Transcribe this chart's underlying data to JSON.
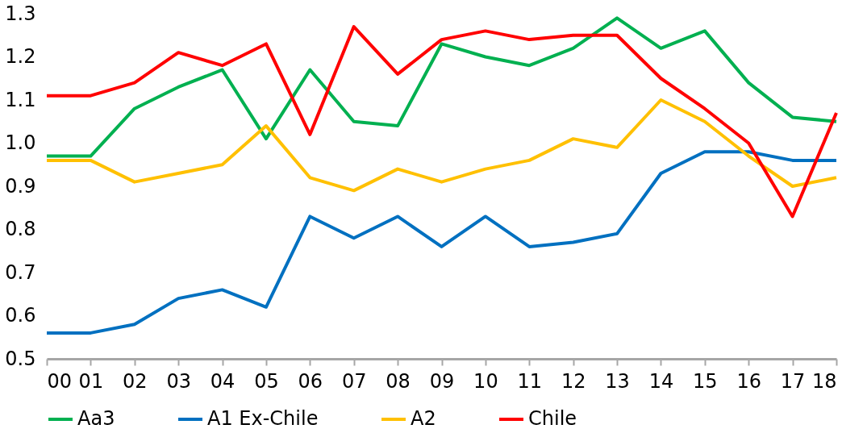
{
  "chart_data": {
    "type": "line",
    "categories": [
      "00",
      "01",
      "02",
      "03",
      "04",
      "05",
      "06",
      "07",
      "08",
      "09",
      "10",
      "11",
      "12",
      "13",
      "14",
      "15",
      "16",
      "17",
      "18"
    ],
    "ylim": [
      0.5,
      1.3
    ],
    "yticks": [
      {
        "value": 0.5,
        "label": "0.5"
      },
      {
        "value": 0.6,
        "label": "0.6"
      },
      {
        "value": 0.7,
        "label": "0.7"
      },
      {
        "value": 0.8,
        "label": "0.8"
      },
      {
        "value": 0.9,
        "label": "0.9"
      },
      {
        "value": 1.0,
        "label": "1.0"
      },
      {
        "value": 1.1,
        "label": "1.1"
      },
      {
        "value": 1.2,
        "label": "1.2"
      },
      {
        "value": 1.3,
        "label": "1.3"
      }
    ],
    "grid": false,
    "legend": "bottom",
    "marker": "none",
    "line_style": "solid",
    "series": [
      {
        "name": "Aa3",
        "color": "#00b050",
        "values": [
          0.97,
          0.97,
          1.08,
          1.13,
          1.17,
          1.01,
          1.17,
          1.05,
          1.04,
          1.23,
          1.2,
          1.18,
          1.22,
          1.29,
          1.22,
          1.26,
          1.14,
          1.06,
          1.05
        ]
      },
      {
        "name": "A1 Ex-Chile",
        "color": "#0070c0",
        "values": [
          0.56,
          0.56,
          0.58,
          0.64,
          0.66,
          0.62,
          0.83,
          0.78,
          0.83,
          0.76,
          0.83,
          0.76,
          0.77,
          0.79,
          0.93,
          0.98,
          0.98,
          0.96,
          0.96
        ]
      },
      {
        "name": "A2",
        "color": "#ffc000",
        "values": [
          0.96,
          0.96,
          0.91,
          0.93,
          0.95,
          1.04,
          0.92,
          0.89,
          0.94,
          0.91,
          0.94,
          0.96,
          1.01,
          0.99,
          1.1,
          1.05,
          0.97,
          0.9,
          0.92
        ]
      },
      {
        "name": "Chile",
        "color": "#ff0000",
        "values": [
          1.11,
          1.11,
          1.14,
          1.21,
          1.18,
          1.23,
          1.02,
          1.27,
          1.16,
          1.24,
          1.26,
          1.24,
          1.25,
          1.25,
          1.15,
          1.08,
          1.0,
          0.83,
          1.07
        ]
      }
    ]
  }
}
